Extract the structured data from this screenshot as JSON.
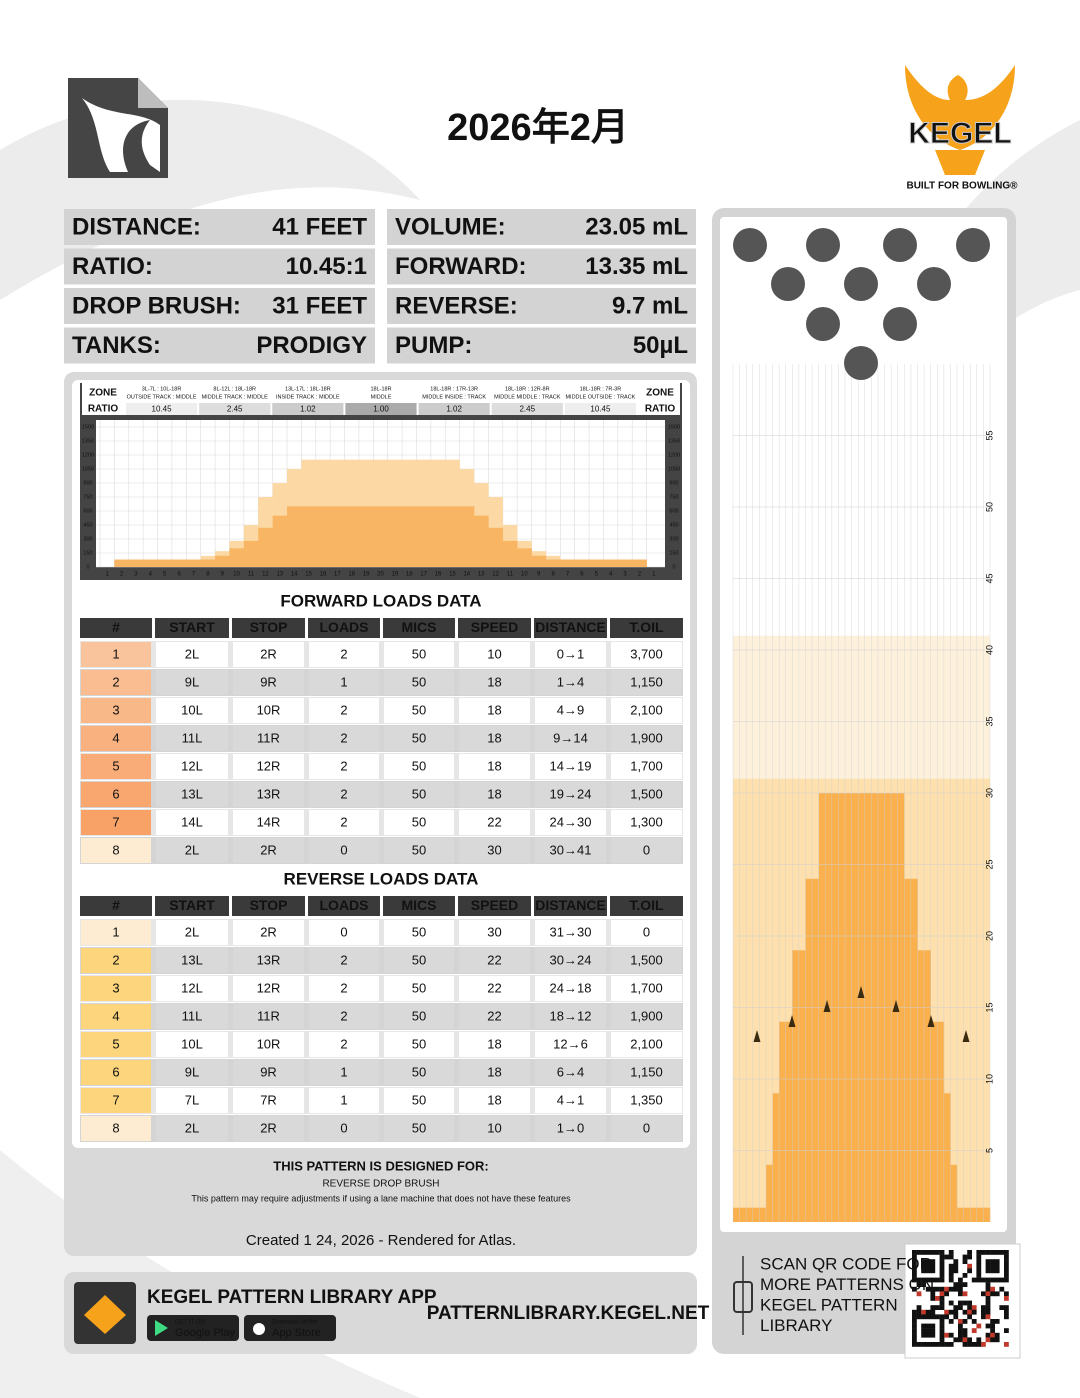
{
  "header": {
    "title": "2026年2月",
    "brand": "KEGEL",
    "tagline": "BUILT FOR BOWLING®"
  },
  "specs": [
    {
      "label": "DISTANCE:",
      "value": "41 FEET"
    },
    {
      "label": "RATIO:",
      "value": "10.45:1"
    },
    {
      "label": "DROP BRUSH:",
      "value": "31 FEET"
    },
    {
      "label": "TANKS:",
      "value": "PRODIGY"
    },
    {
      "label": "VOLUME:",
      "value": "23.05 mL"
    },
    {
      "label": "FORWARD:",
      "value": "13.35 mL"
    },
    {
      "label": "REVERSE:",
      "value": "9.7 mL"
    },
    {
      "label": "PUMP:",
      "value": "50µL"
    }
  ],
  "chart_data": {
    "type": "bar",
    "zone_label": "ZONE",
    "ratio_label": "RATIO",
    "zones": [
      {
        "range": "3L-7L : 10L-18R",
        "name": "OUTSIDE TRACK : MIDDLE",
        "ratio": "10.45"
      },
      {
        "range": "8L-12L : 18L-18R",
        "name": "MIDDLE TRACK : MIDDLE",
        "ratio": "2.45"
      },
      {
        "range": "13L-17L : 18L-18R",
        "name": "INSIDE TRACK : MIDDLE",
        "ratio": "1.02"
      },
      {
        "range": "18L-18R",
        "name": "MIDDLE",
        "ratio": "1.00"
      },
      {
        "range": "18L-18R : 17R-13R",
        "name": "MIDDLE INSIDE : TRACK",
        "ratio": "1.02"
      },
      {
        "range": "18L-18R : 12R-8R",
        "name": "MIDDLE MIDDLE : TRACK",
        "ratio": "2.45"
      },
      {
        "range": "18L-18R : 7R-3R",
        "name": "MIDDLE OUTSIDE : TRACK",
        "ratio": "10.45"
      }
    ],
    "categories": [
      1,
      2,
      3,
      4,
      5,
      6,
      7,
      8,
      9,
      10,
      11,
      12,
      13,
      14,
      15,
      16,
      17,
      18,
      19,
      20,
      19,
      18,
      17,
      16,
      15,
      14,
      13,
      12,
      11,
      10,
      9,
      8,
      7,
      6,
      5,
      4,
      3,
      2,
      1
    ],
    "ylim": [
      0,
      1500
    ],
    "yticks": [
      0,
      150,
      300,
      450,
      600,
      750,
      900,
      1050,
      1200,
      1350,
      1500
    ],
    "series": [
      {
        "color": "#fcd9a4",
        "values": [
          0,
          80,
          80,
          80,
          80,
          80,
          80,
          120,
          170,
          280,
          450,
          750,
          900,
          1050,
          1150,
          1150,
          1150,
          1150,
          1150,
          1150,
          1150,
          1150,
          1150,
          1150,
          1150,
          1050,
          900,
          750,
          450,
          280,
          170,
          120,
          80,
          80,
          80,
          80,
          80,
          80,
          0
        ]
      },
      {
        "color": "#f8b563",
        "values": [
          0,
          80,
          80,
          80,
          80,
          80,
          80,
          80,
          120,
          200,
          280,
          420,
          550,
          650,
          650,
          650,
          650,
          650,
          650,
          650,
          650,
          650,
          650,
          650,
          650,
          650,
          550,
          420,
          280,
          200,
          120,
          80,
          80,
          80,
          80,
          80,
          80,
          80,
          0
        ]
      }
    ]
  },
  "lane": {
    "ylim": [
      0,
      60
    ],
    "yticks": [
      5,
      10,
      15,
      20,
      25,
      30,
      35,
      40,
      45,
      50,
      55
    ],
    "pattern_length": 41,
    "brush_drop": 31,
    "color": "#f9b04d",
    "oil_lengths": [
      1,
      1,
      1,
      1,
      1,
      4,
      9,
      14,
      14,
      19,
      19,
      24,
      24,
      30,
      30,
      30,
      30,
      30,
      30,
      30,
      30,
      30,
      30,
      30,
      30,
      30,
      24,
      24,
      19,
      19,
      14,
      14,
      9,
      4,
      1,
      1,
      1,
      1,
      1
    ]
  },
  "tables": [
    {
      "title": "FORWARD LOADS DATA",
      "headers": [
        "#",
        "START",
        "STOP",
        "LOADS",
        "MICS",
        "SPEED",
        "DISTANCE",
        "T.OIL"
      ],
      "rows": [
        [
          "1",
          "2L",
          "2R",
          "2",
          "50",
          "10",
          "0→1",
          "3,700"
        ],
        [
          "2",
          "9L",
          "9R",
          "1",
          "50",
          "18",
          "1→4",
          "1,150"
        ],
        [
          "3",
          "10L",
          "10R",
          "2",
          "50",
          "18",
          "4→9",
          "2,100"
        ],
        [
          "4",
          "11L",
          "11R",
          "2",
          "50",
          "18",
          "9→14",
          "1,900"
        ],
        [
          "5",
          "12L",
          "12R",
          "2",
          "50",
          "18",
          "14→19",
          "1,700"
        ],
        [
          "6",
          "13L",
          "13R",
          "2",
          "50",
          "18",
          "19→24",
          "1,500"
        ],
        [
          "7",
          "14L",
          "14R",
          "2",
          "50",
          "22",
          "24→30",
          "1,300"
        ],
        [
          "8",
          "2L",
          "2R",
          "0",
          "50",
          "30",
          "30→41",
          "0"
        ]
      ]
    },
    {
      "title": "REVERSE LOADS DATA",
      "headers": [
        "#",
        "START",
        "STOP",
        "LOADS",
        "MICS",
        "SPEED",
        "DISTANCE",
        "T.OIL"
      ],
      "rows": [
        [
          "1",
          "2L",
          "2R",
          "0",
          "50",
          "30",
          "31→30",
          "0"
        ],
        [
          "2",
          "13L",
          "13R",
          "2",
          "50",
          "22",
          "30→24",
          "1,500"
        ],
        [
          "3",
          "12L",
          "12R",
          "2",
          "50",
          "22",
          "24→18",
          "1,700"
        ],
        [
          "4",
          "11L",
          "11R",
          "2",
          "50",
          "22",
          "18→12",
          "1,900"
        ],
        [
          "5",
          "10L",
          "10R",
          "2",
          "50",
          "18",
          "12→6",
          "2,100"
        ],
        [
          "6",
          "9L",
          "9R",
          "1",
          "50",
          "18",
          "6→4",
          "1,150"
        ],
        [
          "7",
          "7L",
          "7R",
          "1",
          "50",
          "18",
          "4→1",
          "1,350"
        ],
        [
          "8",
          "2L",
          "2R",
          "0",
          "50",
          "10",
          "1→0",
          "0"
        ]
      ]
    }
  ],
  "footer": {
    "designed_for": "THIS PATTERN IS DESIGNED FOR:",
    "feature": "REVERSE DROP BRUSH",
    "note": "This pattern may require adjustments if using a lane machine that does not have these features",
    "created": "Created 1 24, 2026 - Rendered for Atlas."
  },
  "app": {
    "title": "KEGEL PATTERN LIBRARY APP",
    "url": "PATTERNLIBRARY.KEGEL.NET",
    "google_small": "GET IT ON",
    "google": "Google Play",
    "apple_small": "Download on the",
    "apple": "App Store"
  },
  "qr": {
    "lines": [
      "SCAN QR CODE FOR",
      "MORE PATTERNS ON",
      "KEGEL PATTERN",
      "LIBRARY"
    ]
  }
}
